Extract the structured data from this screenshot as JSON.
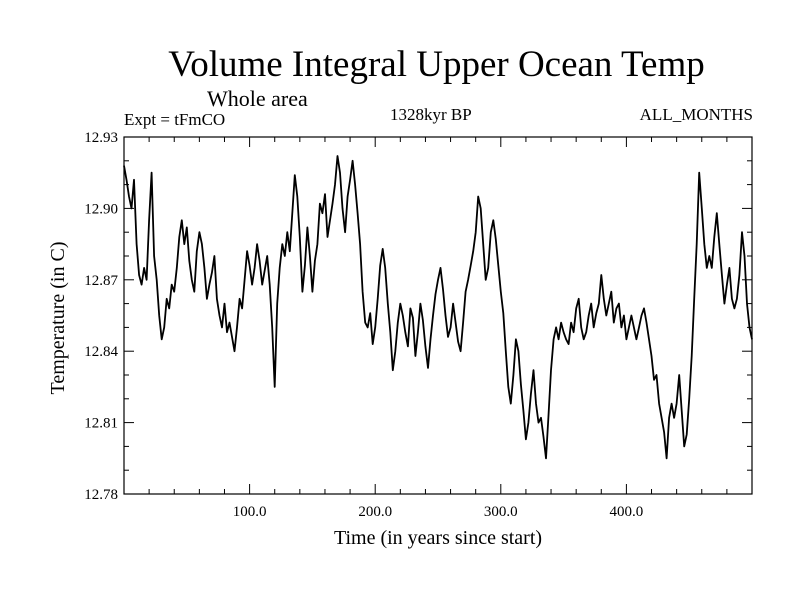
{
  "chart_data": {
    "type": "line",
    "title": "Volume Integral Upper Ocean Temp",
    "subtitle": "Whole area",
    "left_annotation": "Expt = tFmCO",
    "center_annotation": "1328kyr BP",
    "right_annotation": "ALL_MONTHS",
    "xlabel": "Time (in years since start)",
    "ylabel": "Temperature (in C)",
    "xlim": [
      0,
      500
    ],
    "ylim": [
      12.78,
      12.93
    ],
    "xticks": [
      100,
      200,
      300,
      400
    ],
    "xtick_labels": [
      "100.0",
      "200.0",
      "300.0",
      "400.0"
    ],
    "yticks": [
      12.78,
      12.81,
      12.84,
      12.87,
      12.9,
      12.93
    ],
    "ytick_labels": [
      "12.78",
      "12.81",
      "12.84",
      "12.87",
      "12.90",
      "12.93"
    ],
    "grid": false,
    "series": [
      {
        "name": "Temperature",
        "color": "#000000",
        "x": [
          0,
          2,
          4,
          6,
          8,
          10,
          12,
          14,
          16,
          18,
          20,
          22,
          24,
          26,
          28,
          30,
          32,
          34,
          36,
          38,
          40,
          42,
          44,
          46,
          48,
          50,
          52,
          54,
          56,
          58,
          60,
          62,
          64,
          66,
          68,
          70,
          72,
          74,
          76,
          78,
          80,
          82,
          84,
          86,
          88,
          90,
          92,
          94,
          96,
          98,
          100,
          102,
          104,
          106,
          108,
          110,
          112,
          114,
          116,
          118,
          120,
          122,
          124,
          126,
          128,
          130,
          132,
          134,
          136,
          138,
          140,
          142,
          144,
          146,
          148,
          150,
          152,
          154,
          156,
          158,
          160,
          162,
          164,
          166,
          168,
          170,
          172,
          174,
          176,
          178,
          180,
          182,
          184,
          186,
          188,
          190,
          192,
          194,
          196,
          198,
          200,
          202,
          204,
          206,
          208,
          210,
          212,
          214,
          216,
          218,
          220,
          222,
          224,
          226,
          228,
          230,
          232,
          234,
          236,
          238,
          240,
          242,
          244,
          246,
          248,
          250,
          252,
          254,
          256,
          258,
          260,
          262,
          264,
          266,
          268,
          270,
          272,
          274,
          276,
          278,
          280,
          282,
          284,
          286,
          288,
          290,
          292,
          294,
          296,
          298,
          300,
          302,
          304,
          306,
          308,
          310,
          312,
          314,
          316,
          318,
          320,
          322,
          324,
          326,
          328,
          330,
          332,
          334,
          336,
          338,
          340,
          342,
          344,
          346,
          348,
          350,
          352,
          354,
          356,
          358,
          360,
          362,
          364,
          366,
          368,
          370,
          372,
          374,
          376,
          378,
          380,
          382,
          384,
          386,
          388,
          390,
          392,
          394,
          396,
          398,
          400,
          402,
          404,
          406,
          408,
          410,
          412,
          414,
          416,
          418,
          420,
          422,
          424,
          426,
          428,
          430,
          432,
          434,
          436,
          438,
          440,
          442,
          444,
          446,
          448,
          450,
          452,
          454,
          456,
          458,
          460,
          462,
          464,
          466,
          468,
          470,
          472,
          474,
          476,
          478,
          480,
          482,
          484,
          486,
          488,
          490,
          492,
          494,
          496,
          498,
          500
        ],
        "values": [
          12.918,
          12.912,
          12.905,
          12.9,
          12.912,
          12.885,
          12.872,
          12.868,
          12.875,
          12.87,
          12.895,
          12.915,
          12.88,
          12.87,
          12.855,
          12.845,
          12.85,
          12.862,
          12.858,
          12.868,
          12.865,
          12.875,
          12.888,
          12.895,
          12.885,
          12.892,
          12.878,
          12.87,
          12.865,
          12.882,
          12.89,
          12.885,
          12.875,
          12.862,
          12.868,
          12.873,
          12.88,
          12.862,
          12.855,
          12.85,
          12.86,
          12.848,
          12.852,
          12.846,
          12.84,
          12.85,
          12.862,
          12.858,
          12.87,
          12.882,
          12.876,
          12.868,
          12.875,
          12.885,
          12.878,
          12.868,
          12.874,
          12.88,
          12.868,
          12.85,
          12.825,
          12.86,
          12.875,
          12.885,
          12.88,
          12.89,
          12.882,
          12.898,
          12.914,
          12.905,
          12.888,
          12.865,
          12.876,
          12.892,
          12.88,
          12.865,
          12.878,
          12.885,
          12.902,
          12.898,
          12.906,
          12.888,
          12.895,
          12.902,
          12.91,
          12.922,
          12.915,
          12.9,
          12.89,
          12.905,
          12.912,
          12.92,
          12.91,
          12.898,
          12.885,
          12.865,
          12.852,
          12.85,
          12.856,
          12.843,
          12.85,
          12.862,
          12.876,
          12.883,
          12.875,
          12.86,
          12.848,
          12.832,
          12.84,
          12.852,
          12.86,
          12.855,
          12.848,
          12.842,
          12.858,
          12.854,
          12.838,
          12.848,
          12.86,
          12.853,
          12.842,
          12.833,
          12.845,
          12.855,
          12.864,
          12.87,
          12.875,
          12.866,
          12.855,
          12.846,
          12.85,
          12.86,
          12.852,
          12.844,
          12.84,
          12.852,
          12.865,
          12.87,
          12.876,
          12.882,
          12.89,
          12.905,
          12.9,
          12.885,
          12.87,
          12.875,
          12.89,
          12.895,
          12.887,
          12.876,
          12.865,
          12.856,
          12.84,
          12.825,
          12.818,
          12.83,
          12.845,
          12.84,
          12.826,
          12.815,
          12.803,
          12.81,
          12.822,
          12.832,
          12.818,
          12.81,
          12.812,
          12.804,
          12.795,
          12.813,
          12.832,
          12.845,
          12.85,
          12.845,
          12.852,
          12.848,
          12.845,
          12.843,
          12.852,
          12.848,
          12.858,
          12.862,
          12.85,
          12.845,
          12.848,
          12.855,
          12.86,
          12.85,
          12.856,
          12.86,
          12.872,
          12.862,
          12.855,
          12.86,
          12.865,
          12.852,
          12.858,
          12.86,
          12.85,
          12.855,
          12.845,
          12.85,
          12.855,
          12.85,
          12.845,
          12.85,
          12.855,
          12.858,
          12.852,
          12.845,
          12.838,
          12.828,
          12.83,
          12.818,
          12.812,
          12.806,
          12.795,
          12.812,
          12.818,
          12.812,
          12.818,
          12.83,
          12.815,
          12.8,
          12.805,
          12.82,
          12.838,
          12.862,
          12.885,
          12.915,
          12.9,
          12.885,
          12.875,
          12.88,
          12.875,
          12.888,
          12.898,
          12.885,
          12.872,
          12.86,
          12.868,
          12.875,
          12.862,
          12.858,
          12.862,
          12.872,
          12.89,
          12.88,
          12.86,
          12.85,
          12.845
        ]
      }
    ]
  }
}
